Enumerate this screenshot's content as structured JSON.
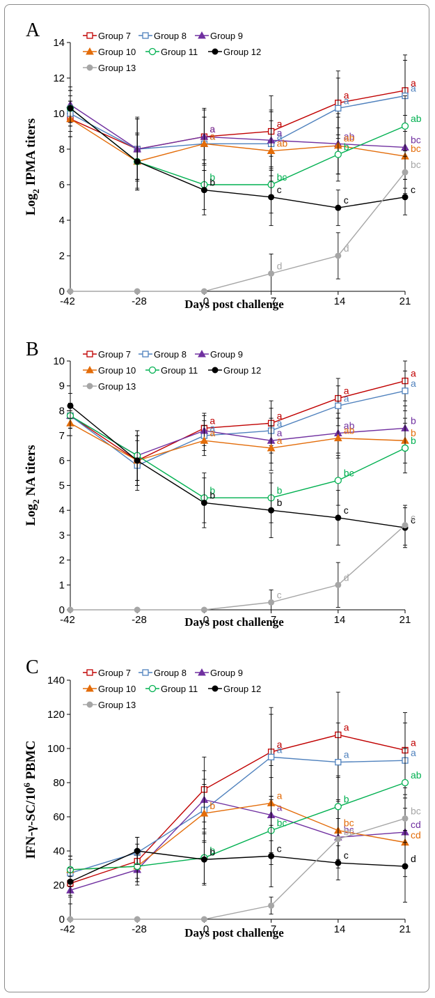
{
  "chart_data": [
    {
      "panel": "A",
      "type": "line",
      "ylabel": "Log2 IPMA titers",
      "ylabel_main": "Log",
      "ylabel_sub": "2",
      "ylabel_rest": " IPMA titers",
      "xlabel": "Days post challenge",
      "x": [
        "-42",
        "-28",
        "0",
        "7",
        "14",
        "21"
      ],
      "yticks": [
        "0",
        "2",
        "4",
        "6",
        "8",
        "10",
        "12",
        "14"
      ],
      "ylim": [
        0,
        14
      ],
      "series": [
        {
          "name": "Group 7",
          "color": "#c00000",
          "marker": "square-open",
          "values": [
            9.7,
            8.0,
            8.7,
            9.0,
            10.6,
            11.3
          ],
          "errors": [
            1.0,
            1.8,
            1.6,
            2.0,
            1.8,
            2.0
          ],
          "letters": [
            "",
            "",
            "a",
            "a",
            "a",
            "a"
          ]
        },
        {
          "name": "Group 8",
          "color": "#4f81bd",
          "marker": "square-open",
          "values": [
            10.0,
            8.0,
            8.3,
            8.3,
            10.3,
            11.0
          ],
          "errors": [
            1.0,
            1.7,
            1.5,
            1.8,
            1.7,
            2.0
          ],
          "letters": [
            "",
            "",
            "a",
            "a",
            "a",
            "a"
          ]
        },
        {
          "name": "Group 9",
          "color": "#7030a0",
          "marker": "triangle",
          "values": [
            10.5,
            8.0,
            8.7,
            8.5,
            8.3,
            8.1
          ],
          "errors": [
            1.0,
            1.7,
            1.5,
            1.7,
            1.7,
            1.8
          ],
          "letters": [
            "",
            "",
            "a",
            "a",
            "ab",
            "bc"
          ]
        },
        {
          "name": "Group 10",
          "color": "#e36c09",
          "marker": "triangle",
          "values": [
            9.7,
            7.3,
            8.3,
            7.9,
            8.2,
            7.6
          ],
          "errors": [
            1.0,
            1.6,
            1.5,
            1.7,
            1.6,
            1.8
          ],
          "letters": [
            "",
            "",
            "a",
            "ab",
            "ab",
            "bc"
          ]
        },
        {
          "name": "Group 11",
          "color": "#00b050",
          "marker": "circle-open",
          "values": [
            10.3,
            7.3,
            6.0,
            6.0,
            7.7,
            9.3
          ],
          "errors": [
            1.0,
            1.6,
            1.4,
            1.6,
            1.5,
            1.7
          ],
          "letters": [
            "",
            "",
            "b",
            "bc",
            "b",
            "ab"
          ]
        },
        {
          "name": "Group 12",
          "color": "#000000",
          "marker": "circle",
          "values": [
            10.3,
            7.3,
            5.7,
            5.3,
            4.7,
            5.3
          ],
          "errors": [
            1.0,
            1.5,
            1.4,
            1.6,
            1.0,
            1.0
          ],
          "letters": [
            "",
            "",
            "b",
            "c",
            "c",
            "c"
          ]
        },
        {
          "name": "Group 13",
          "color": "#a6a6a6",
          "marker": "circle",
          "values": [
            0.0,
            0.0,
            0.0,
            1.0,
            2.0,
            6.7
          ],
          "errors": [
            0,
            0,
            0,
            1.1,
            1.3,
            1.2
          ],
          "letters": [
            "",
            "",
            "",
            "d",
            "d",
            "bc"
          ]
        }
      ]
    },
    {
      "panel": "B",
      "type": "line",
      "ylabel": "Log2 NA titers",
      "ylabel_main": "Log",
      "ylabel_sub": "2",
      "ylabel_rest": " NA titers",
      "xlabel": "Days post challenge",
      "x": [
        "-42",
        "-28",
        "0",
        "7",
        "14",
        "21"
      ],
      "yticks": [
        "0",
        "1",
        "2",
        "3",
        "4",
        "5",
        "6",
        "7",
        "8",
        "9",
        "10"
      ],
      "ylim": [
        0,
        10
      ],
      "series": [
        {
          "name": "Group 7",
          "color": "#c00000",
          "marker": "square-open",
          "values": [
            7.8,
            6.0,
            7.3,
            7.5,
            8.5,
            9.2
          ],
          "errors": [
            0.5,
            1.0,
            0.6,
            0.9,
            0.8,
            0.8
          ],
          "letters": [
            "",
            "",
            "a",
            "a",
            "a",
            "a"
          ]
        },
        {
          "name": "Group 8",
          "color": "#4f81bd",
          "marker": "square-open",
          "values": [
            7.8,
            5.8,
            7.0,
            7.2,
            8.2,
            8.8
          ],
          "errors": [
            0.5,
            1.0,
            0.6,
            0.9,
            0.8,
            0.8
          ],
          "letters": [
            "",
            "",
            "a",
            "a",
            "a",
            "a"
          ]
        },
        {
          "name": "Group 9",
          "color": "#7030a0",
          "marker": "triangle",
          "values": [
            7.8,
            6.2,
            7.2,
            6.8,
            7.1,
            7.3
          ],
          "errors": [
            0.5,
            1.0,
            0.6,
            0.9,
            0.8,
            0.9
          ],
          "letters": [
            "",
            "",
            "",
            "a",
            "ab",
            "b"
          ]
        },
        {
          "name": "Group 10",
          "color": "#e36c09",
          "marker": "triangle",
          "values": [
            7.5,
            6.0,
            6.8,
            6.5,
            6.9,
            6.8
          ],
          "errors": [
            0.5,
            1.0,
            0.6,
            0.9,
            0.8,
            0.9
          ],
          "letters": [
            "",
            "",
            "a",
            "a",
            "ab",
            "b"
          ]
        },
        {
          "name": "Group 11",
          "color": "#00b050",
          "marker": "circle-open",
          "values": [
            7.8,
            6.2,
            4.5,
            4.5,
            5.2,
            6.5
          ],
          "errors": [
            0.5,
            1.0,
            1.0,
            1.0,
            1.0,
            1.0
          ],
          "letters": [
            "",
            "",
            "b",
            "b",
            "bc",
            "b"
          ]
        },
        {
          "name": "Group 12",
          "color": "#000000",
          "marker": "circle",
          "values": [
            8.2,
            6.0,
            4.3,
            4.0,
            3.7,
            3.3
          ],
          "errors": [
            0.5,
            1.0,
            1.0,
            1.1,
            1.1,
            0.8
          ],
          "letters": [
            "",
            "",
            "b",
            "b",
            "c",
            "c"
          ]
        },
        {
          "name": "Group 13",
          "color": "#a6a6a6",
          "marker": "circle",
          "values": [
            0.0,
            0.0,
            0.0,
            0.3,
            1.0,
            3.4
          ],
          "errors": [
            0,
            0,
            0,
            0.5,
            0.9,
            0.8
          ],
          "letters": [
            "",
            "",
            "",
            "c",
            "d",
            "c"
          ]
        }
      ]
    },
    {
      "panel": "C",
      "type": "line",
      "ylabel": "IFN-γ-SC/10^6 PBMC",
      "ylabel_main": "IFN-γ-SC/10",
      "ylabel_sup": "6",
      "ylabel_rest": " PBMC",
      "xlabel": "Days post challenge",
      "x": [
        "-42",
        "-28",
        "0",
        "7",
        "14",
        "21"
      ],
      "yticks": [
        "0",
        "20",
        "40",
        "60",
        "80",
        "100",
        "120",
        "140"
      ],
      "ylim": [
        0,
        140
      ],
      "series": [
        {
          "name": "Group 7",
          "color": "#c00000",
          "marker": "square-open",
          "values": [
            21,
            34,
            76,
            98,
            108,
            99
          ],
          "errors": [
            8,
            10,
            19,
            26,
            25,
            22
          ],
          "letters": [
            "",
            "",
            "",
            "a",
            "a",
            "a"
          ]
        },
        {
          "name": "Group 8",
          "color": "#4f81bd",
          "marker": "square-open",
          "values": [
            27,
            39,
            64,
            95,
            92,
            93
          ],
          "errors": [
            8,
            9,
            18,
            25,
            23,
            22
          ],
          "letters": [
            "",
            "",
            "",
            "a",
            "a",
            "a"
          ]
        },
        {
          "name": "Group 9",
          "color": "#7030a0",
          "marker": "triangle",
          "values": [
            17,
            29,
            70,
            61,
            48,
            51
          ],
          "errors": [
            8,
            9,
            17,
            22,
            18,
            20
          ],
          "letters": [
            "",
            "",
            "",
            "a",
            "bc",
            "cd"
          ]
        },
        {
          "name": "Group 10",
          "color": "#e36c09",
          "marker": "triangle",
          "values": [
            29,
            31,
            62,
            68,
            52,
            45
          ],
          "errors": [
            8,
            9,
            17,
            22,
            18,
            20
          ],
          "letters": [
            "",
            "",
            "b",
            "a",
            "bc",
            "cd"
          ]
        },
        {
          "name": "Group 11",
          "color": "#00b050",
          "marker": "circle-open",
          "values": [
            29,
            31,
            36,
            52,
            66,
            80
          ],
          "errors": [
            8,
            9,
            15,
            20,
            18,
            20
          ],
          "letters": [
            "",
            "",
            "b",
            "bc",
            "b",
            "ab"
          ]
        },
        {
          "name": "Group 12",
          "color": "#000000",
          "marker": "circle",
          "values": [
            22,
            40,
            35,
            37,
            33,
            31
          ],
          "errors": [
            8,
            8,
            15,
            18,
            10,
            21
          ],
          "letters": [
            "",
            "",
            "b",
            "c",
            "c",
            "d"
          ]
        },
        {
          "name": "Group 13",
          "color": "#a6a6a6",
          "marker": "circle",
          "values": [
            0,
            0,
            0,
            8,
            47,
            59
          ],
          "errors": [
            0,
            0,
            0,
            5,
            12,
            14
          ],
          "letters": [
            "",
            "",
            "",
            "",
            "bc",
            "bc"
          ]
        }
      ]
    }
  ]
}
